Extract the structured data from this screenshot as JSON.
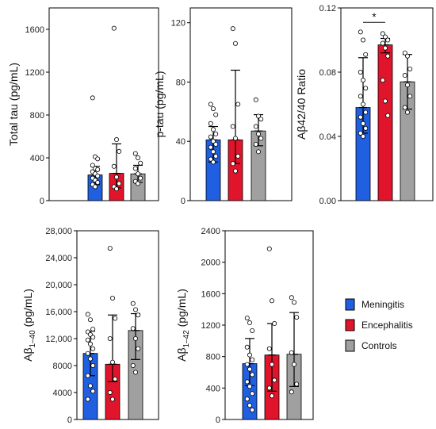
{
  "colors": {
    "Meningitis": "#1f5fe0",
    "Encephalitis": "#e0142b",
    "Controls": "#a0a0a0"
  },
  "legend": [
    {
      "name": "Meningitis",
      "swatch": "Meningitis"
    },
    {
      "name": "Encephalitis",
      "swatch": "Encephalitis"
    },
    {
      "name": "Controls",
      "swatch": "Controls"
    }
  ],
  "chart_data": [
    {
      "type": "bar",
      "ylabel": "Total tau (pg/mL)",
      "ylim": [
        0,
        1800
      ],
      "yticks": [
        0,
        400,
        800,
        1200,
        1600
      ],
      "ytick_labels": [
        "0",
        "400",
        "800",
        "1200",
        "1600"
      ],
      "categories": [
        "Meningitis",
        "Encephalitis",
        "Controls"
      ],
      "values": [
        240,
        255,
        250
      ],
      "err_low": [
        150,
        120,
        170
      ],
      "err_high": [
        320,
        530,
        330
      ],
      "points": [
        [
          960,
          410,
          390,
          330,
          300,
          290,
          270,
          250,
          230,
          210,
          190,
          170,
          150,
          130
        ],
        [
          1610,
          570,
          460,
          320,
          220,
          160,
          130,
          110
        ],
        [
          440,
          400,
          350,
          300,
          250,
          210,
          180,
          160
        ]
      ]
    },
    {
      "type": "bar",
      "ylabel": "p-tau (pg/mL)",
      "ylim": [
        0,
        130
      ],
      "yticks": [
        0,
        40,
        80,
        120
      ],
      "ytick_labels": [
        "0",
        "40",
        "80",
        "120"
      ],
      "categories": [
        "Meningitis",
        "Encephalitis",
        "Controls"
      ],
      "values": [
        41,
        41,
        47
      ],
      "err_low": [
        26,
        25,
        37
      ],
      "err_high": [
        50,
        88,
        58
      ],
      "points": [
        [
          65,
          62,
          58,
          52,
          48,
          45,
          43,
          40,
          38,
          36,
          33,
          30,
          28,
          26
        ],
        [
          116,
          106,
          65,
          50,
          42,
          30,
          25,
          20
        ],
        [
          68,
          57,
          55,
          50,
          45,
          42,
          38,
          33
        ]
      ]
    },
    {
      "type": "bar",
      "ylabel": "Aβ42/40 Ratio",
      "ylim": [
        0,
        0.12
      ],
      "yticks": [
        0,
        0.04,
        0.08,
        0.12
      ],
      "ytick_labels": [
        "0.00",
        "0.04",
        "0.08",
        "0.12"
      ],
      "categories": [
        "Meningitis",
        "Encephalitis",
        "Controls"
      ],
      "values": [
        0.058,
        0.097,
        0.074
      ],
      "err_low": [
        0.042,
        0.092,
        0.057
      ],
      "err_high": [
        0.089,
        0.101,
        0.091
      ],
      "points": [
        [
          0.105,
          0.1,
          0.091,
          0.08,
          0.075,
          0.07,
          0.065,
          0.06,
          0.055,
          0.052,
          0.048,
          0.045,
          0.042,
          0.04
        ],
        [
          0.104,
          0.102,
          0.1,
          0.098,
          0.095,
          0.09,
          0.075,
          0.062,
          0.053
        ],
        [
          0.092,
          0.09,
          0.082,
          0.078,
          0.072,
          0.065,
          0.058,
          0.055
        ]
      ],
      "significance": {
        "label": "*",
        "between": [
          0,
          1
        ],
        "y": 0.111
      }
    },
    {
      "type": "bar",
      "ylabel_main": "Aβ",
      "ylabel_sub": "1–40",
      "ylabel_tail": " (pg/mL)",
      "ylim": [
        0,
        28000
      ],
      "yticks": [
        0,
        4000,
        8000,
        12000,
        16000,
        20000,
        24000,
        28000
      ],
      "ytick_labels": [
        "0",
        "4000",
        "8000",
        "12,000",
        "16,000",
        "20,000",
        "24,000",
        "28,000"
      ],
      "categories": [
        "Meningitis",
        "Encephalitis",
        "Controls"
      ],
      "values": [
        9800,
        8200,
        13200
      ],
      "err_low": [
        6500,
        5600,
        8900
      ],
      "err_high": [
        13100,
        15500,
        15700
      ],
      "points": [
        [
          15600,
          14800,
          13400,
          13000,
          12600,
          12200,
          11800,
          11200,
          10500,
          9800,
          9000,
          8000,
          6500,
          5000,
          4200,
          3000
        ],
        [
          25400,
          18000,
          15000,
          12000,
          8500,
          6000,
          4000,
          3000
        ],
        [
          17200,
          16300,
          15500,
          13500,
          12000,
          10500,
          8000,
          7000
        ]
      ]
    },
    {
      "type": "bar",
      "ylabel_main": "Aβ",
      "ylabel_sub": "1–42",
      "ylabel_tail": " (pg/mL)",
      "ylim": [
        0,
        2400
      ],
      "yticks": [
        0,
        400,
        800,
        1200,
        1600,
        2000,
        2400
      ],
      "ytick_labels": [
        "0",
        "400",
        "800",
        "1200",
        "1600",
        "2000",
        "2400"
      ],
      "categories": [
        "Meningitis",
        "Encephalitis",
        "Controls"
      ],
      "values": [
        710,
        820,
        830
      ],
      "err_low": [
        430,
        360,
        420
      ],
      "err_high": [
        1030,
        1220,
        1360
      ],
      "points": [
        [
          1290,
          1230,
          1130,
          920,
          820,
          760,
          700,
          640,
          570,
          480,
          420,
          330,
          260,
          180,
          120
        ],
        [
          2170,
          1510,
          1220,
          900,
          700,
          500,
          400,
          300
        ],
        [
          1550,
          1490,
          1300,
          850,
          700,
          450,
          350
        ]
      ]
    }
  ]
}
